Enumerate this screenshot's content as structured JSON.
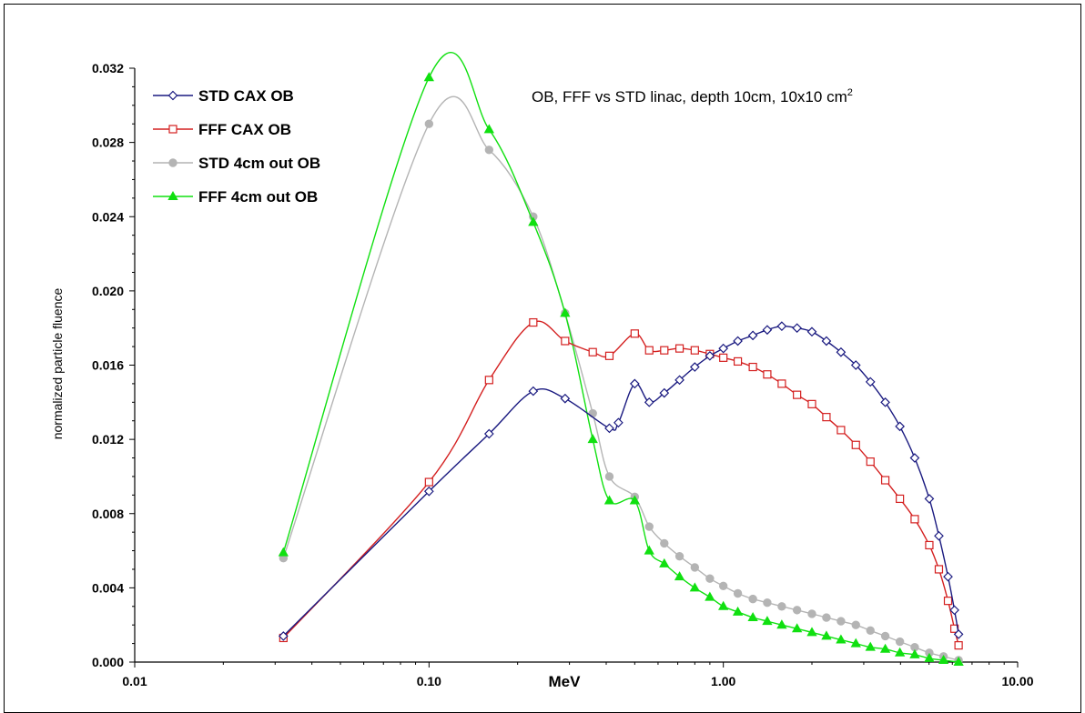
{
  "chart_data": {
    "type": "line",
    "title": "OB, FFF vs STD linac, depth 10cm, 10x10 cm",
    "title_superscript": "2",
    "xlabel": "MeV",
    "ylabel": "normalized particle fluence",
    "x_scale": "log",
    "xlim": [
      0.01,
      10
    ],
    "ylim": [
      0,
      0.032
    ],
    "x_ticks": [
      0.01,
      0.1,
      1,
      10
    ],
    "x_tick_labels": [
      "0.01",
      "0.10",
      "1.00",
      "10.00"
    ],
    "y_ticks": [
      0,
      0.004,
      0.008,
      0.012,
      0.016,
      0.02,
      0.024,
      0.028,
      0.032
    ],
    "y_tick_labels": [
      "0.000",
      "0.004",
      "0.008",
      "0.012",
      "0.016",
      "0.020",
      "0.024",
      "0.028",
      "0.032"
    ],
    "grid": false,
    "legend_position": "top-left",
    "series": [
      {
        "name": "STD CAX OB",
        "color": "#1a1a80",
        "marker": "diamond-open",
        "points": [
          [
            0.032,
            0.0014
          ],
          [
            0.1,
            0.0092
          ],
          [
            0.16,
            0.0123
          ],
          [
            0.226,
            0.0146
          ],
          [
            0.29,
            0.0142
          ],
          [
            0.41,
            0.0126
          ],
          [
            0.44,
            0.0129
          ],
          [
            0.5,
            0.015
          ],
          [
            0.56,
            0.014
          ],
          [
            0.63,
            0.0145
          ],
          [
            0.71,
            0.0152
          ],
          [
            0.8,
            0.0159
          ],
          [
            0.9,
            0.0165
          ],
          [
            1.0,
            0.0169
          ],
          [
            1.12,
            0.0173
          ],
          [
            1.26,
            0.0176
          ],
          [
            1.41,
            0.0179
          ],
          [
            1.58,
            0.0181
          ],
          [
            1.78,
            0.018
          ],
          [
            2.0,
            0.0178
          ],
          [
            2.24,
            0.0173
          ],
          [
            2.51,
            0.0167
          ],
          [
            2.82,
            0.016
          ],
          [
            3.16,
            0.0151
          ],
          [
            3.55,
            0.014
          ],
          [
            3.98,
            0.0127
          ],
          [
            4.47,
            0.011
          ],
          [
            5.01,
            0.0088
          ],
          [
            5.4,
            0.0068
          ],
          [
            5.8,
            0.0046
          ],
          [
            6.1,
            0.0028
          ],
          [
            6.3,
            0.0015
          ]
        ]
      },
      {
        "name": "FFF CAX OB",
        "color": "#d42020",
        "marker": "square-open",
        "points": [
          [
            0.032,
            0.0013
          ],
          [
            0.1,
            0.0097
          ],
          [
            0.16,
            0.0152
          ],
          [
            0.226,
            0.0183
          ],
          [
            0.29,
            0.0173
          ],
          [
            0.36,
            0.0167
          ],
          [
            0.41,
            0.0165
          ],
          [
            0.5,
            0.0177
          ],
          [
            0.56,
            0.0168
          ],
          [
            0.63,
            0.0168
          ],
          [
            0.71,
            0.0169
          ],
          [
            0.8,
            0.0168
          ],
          [
            0.9,
            0.0166
          ],
          [
            1.0,
            0.0164
          ],
          [
            1.12,
            0.0162
          ],
          [
            1.26,
            0.0159
          ],
          [
            1.41,
            0.0155
          ],
          [
            1.58,
            0.015
          ],
          [
            1.78,
            0.0144
          ],
          [
            2.0,
            0.0139
          ],
          [
            2.24,
            0.0132
          ],
          [
            2.51,
            0.0125
          ],
          [
            2.82,
            0.0117
          ],
          [
            3.16,
            0.0108
          ],
          [
            3.55,
            0.0098
          ],
          [
            3.98,
            0.0088
          ],
          [
            4.47,
            0.0077
          ],
          [
            5.01,
            0.0063
          ],
          [
            5.4,
            0.005
          ],
          [
            5.8,
            0.0033
          ],
          [
            6.1,
            0.0018
          ],
          [
            6.3,
            0.0009
          ]
        ]
      },
      {
        "name": "STD 4cm out OB",
        "color": "#b4b4b4",
        "marker": "circle-filled",
        "points": [
          [
            0.032,
            0.0056
          ],
          [
            0.1,
            0.029
          ],
          [
            0.16,
            0.0276
          ],
          [
            0.226,
            0.024
          ],
          [
            0.29,
            0.0188
          ],
          [
            0.36,
            0.0134
          ],
          [
            0.41,
            0.01
          ],
          [
            0.5,
            0.0089
          ],
          [
            0.56,
            0.0073
          ],
          [
            0.63,
            0.0064
          ],
          [
            0.71,
            0.0057
          ],
          [
            0.8,
            0.0051
          ],
          [
            0.9,
            0.0045
          ],
          [
            1.0,
            0.0041
          ],
          [
            1.12,
            0.0037
          ],
          [
            1.26,
            0.0034
          ],
          [
            1.41,
            0.0032
          ],
          [
            1.58,
            0.003
          ],
          [
            1.78,
            0.0028
          ],
          [
            2.0,
            0.0026
          ],
          [
            2.24,
            0.0024
          ],
          [
            2.51,
            0.0022
          ],
          [
            2.82,
            0.002
          ],
          [
            3.16,
            0.0017
          ],
          [
            3.55,
            0.0014
          ],
          [
            3.98,
            0.0011
          ],
          [
            4.47,
            0.0008
          ],
          [
            5.01,
            0.0005
          ],
          [
            5.6,
            0.0003
          ],
          [
            6.3,
            0.0001
          ]
        ]
      },
      {
        "name": "FFF 4cm out OB",
        "color": "#10e010",
        "marker": "triangle-filled",
        "points": [
          [
            0.032,
            0.0059
          ],
          [
            0.1,
            0.0315
          ],
          [
            0.16,
            0.0287
          ],
          [
            0.226,
            0.0237
          ],
          [
            0.29,
            0.0188
          ],
          [
            0.36,
            0.012
          ],
          [
            0.41,
            0.0087
          ],
          [
            0.5,
            0.0087
          ],
          [
            0.56,
            0.006
          ],
          [
            0.63,
            0.0053
          ],
          [
            0.71,
            0.0046
          ],
          [
            0.8,
            0.004
          ],
          [
            0.9,
            0.0035
          ],
          [
            1.0,
            0.003
          ],
          [
            1.12,
            0.0027
          ],
          [
            1.26,
            0.0024
          ],
          [
            1.41,
            0.0022
          ],
          [
            1.58,
            0.002
          ],
          [
            1.78,
            0.0018
          ],
          [
            2.0,
            0.0016
          ],
          [
            2.24,
            0.0014
          ],
          [
            2.51,
            0.0012
          ],
          [
            2.82,
            0.001
          ],
          [
            3.16,
            0.0008
          ],
          [
            3.55,
            0.0007
          ],
          [
            3.98,
            0.0005
          ],
          [
            4.47,
            0.0004
          ],
          [
            5.01,
            0.0002
          ],
          [
            5.6,
            0.0001
          ],
          [
            6.3,
            0.0
          ]
        ]
      }
    ]
  }
}
